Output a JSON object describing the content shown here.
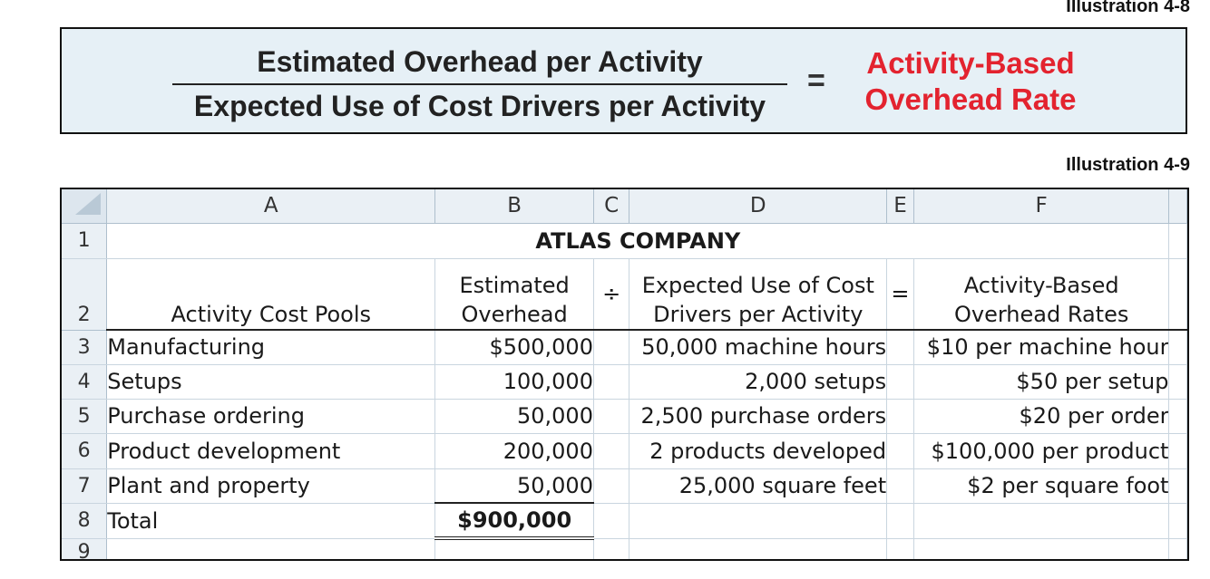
{
  "illustrations": {
    "formula_label": "Illustration 4-8",
    "table_label": "Illustration 4-9"
  },
  "formula": {
    "numerator": "Estimated Overhead per Activity",
    "denominator": "Expected Use of Cost Drivers per Activity",
    "equals": "=",
    "result_line1": "Activity-Based",
    "result_line2": "Overhead Rate"
  },
  "sheet": {
    "columns": [
      "A",
      "B",
      "C",
      "D",
      "E",
      "F"
    ],
    "row_numbers": [
      "1",
      "2",
      "3",
      "4",
      "5",
      "6",
      "7",
      "8",
      "9"
    ],
    "title": "ATLAS COMPANY",
    "headers": {
      "pools": "Activity Cost Pools",
      "overhead_line1": "Estimated",
      "overhead_line2": "Overhead",
      "divide": "÷",
      "drivers_line1": "Expected Use of Cost",
      "drivers_line2": "Drivers per Activity",
      "equals": "=",
      "rates_line1": "Activity-Based",
      "rates_line2": "Overhead Rates"
    },
    "rows": [
      {
        "pool": "Manufacturing",
        "overhead": "$500,000",
        "drivers": "50,000 machine hours",
        "rate": "$10 per machine hour"
      },
      {
        "pool": "Setups",
        "overhead": "100,000",
        "drivers": "2,000 setups",
        "rate": "$50 per setup"
      },
      {
        "pool": "Purchase ordering",
        "overhead": "50,000",
        "drivers": "2,500 purchase orders",
        "rate": "$20 per order"
      },
      {
        "pool": "Product development",
        "overhead": "200,000",
        "drivers": "2 products developed",
        "rate": "$100,000 per product"
      },
      {
        "pool": "Plant and property",
        "overhead": "50,000",
        "drivers": "25,000 square feet",
        "rate": "$2 per square foot"
      }
    ],
    "total": {
      "label": "Total",
      "value": "$900,000"
    }
  },
  "colors": {
    "accent_red": "#e3232f",
    "formula_bg": "#e6f0f6",
    "header_bg": "#eaf0f5"
  }
}
